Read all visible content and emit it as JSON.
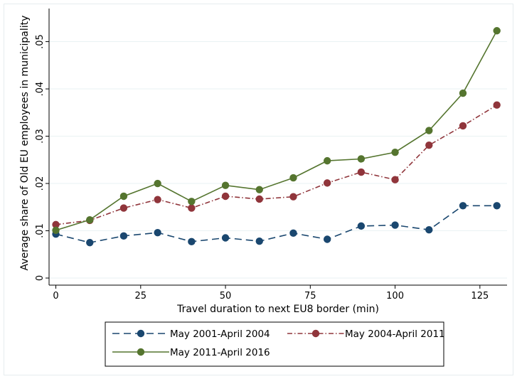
{
  "chart_data": {
    "type": "line",
    "title": "",
    "xlabel": "Travel duration to next EU8 border (min)",
    "ylabel": "Average share of Old EU employees in municipality",
    "x": [
      0,
      10,
      20,
      30,
      40,
      50,
      60,
      70,
      80,
      90,
      100,
      110,
      120,
      130
    ],
    "xlim": [
      -2,
      133
    ],
    "ylim": [
      -0.0015,
      0.057
    ],
    "xticks": [
      0,
      25,
      50,
      75,
      100,
      125
    ],
    "xtick_labels": [
      "0",
      "25",
      "50",
      "75",
      "100",
      "125"
    ],
    "yticks": [
      0,
      0.01,
      0.02,
      0.03,
      0.04,
      0.05
    ],
    "ytick_labels": [
      "0",
      ".01",
      ".02",
      ".03",
      ".04",
      ".05"
    ],
    "grid": "horizontal",
    "legend_position": "bottom",
    "series": [
      {
        "name": "May 2001-April 2004",
        "color": "#1a476f",
        "dash": "long-dash",
        "values": [
          0.0093,
          0.0075,
          0.0089,
          0.0096,
          0.0077,
          0.0085,
          0.0078,
          0.0095,
          0.0082,
          0.011,
          0.0112,
          0.0102,
          0.0153,
          0.0153
        ]
      },
      {
        "name": "May 2004-April 2011",
        "color": "#90353b",
        "dash": "dash-dot",
        "values": [
          0.0113,
          0.0122,
          0.0148,
          0.0166,
          0.0148,
          0.0173,
          0.0167,
          0.0172,
          0.0201,
          0.0224,
          0.0208,
          0.0281,
          0.0322,
          0.0366
        ]
      },
      {
        "name": "May 2011-April 2016",
        "color": "#55752f",
        "dash": "solid",
        "values": [
          0.0101,
          0.0123,
          0.0173,
          0.02,
          0.0162,
          0.0196,
          0.0187,
          0.0212,
          0.0248,
          0.0252,
          0.0266,
          0.0312,
          0.0391,
          0.0523
        ]
      }
    ]
  }
}
